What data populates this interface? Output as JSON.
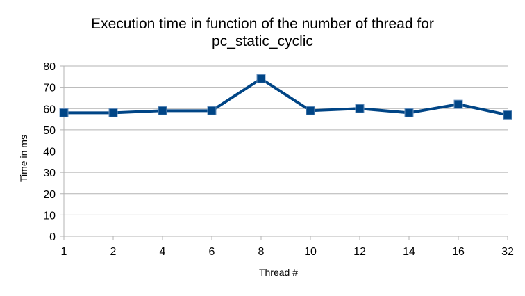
{
  "chart_data": {
    "type": "line",
    "title_lines": [
      "Execution time in function of the number of thread for",
      "pc_static_cyclic"
    ],
    "xlabel": "Thread #",
    "ylabel": "Time in ms",
    "categories": [
      "1",
      "2",
      "4",
      "6",
      "8",
      "10",
      "12",
      "14",
      "16",
      "32"
    ],
    "series": [
      {
        "values": [
          58,
          58,
          59,
          59,
          74,
          59,
          60,
          58,
          62,
          57
        ],
        "color": "#004586",
        "marker": "square"
      }
    ],
    "ylim": [
      0,
      80
    ],
    "yticks": [
      0,
      10,
      20,
      30,
      40,
      50,
      60,
      70,
      80
    ],
    "grid": true,
    "legend": "none"
  }
}
